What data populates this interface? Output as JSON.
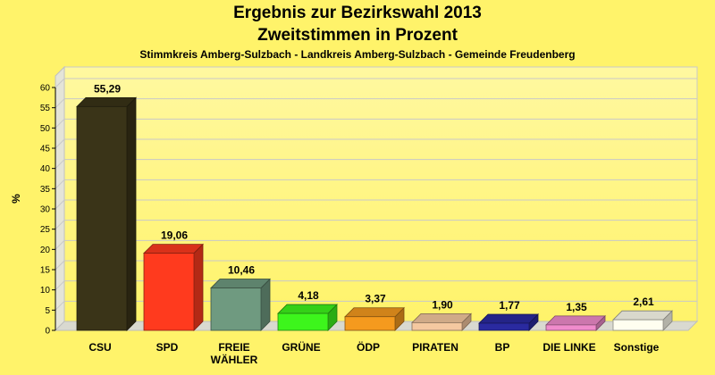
{
  "chart_data": {
    "type": "bar",
    "title": "Ergebnis zur Bezirkswahl 2013",
    "subtitle": "Zweitstimmen in Prozent",
    "caption": "Stimmkreis Amberg-Sulzbach - Landkreis Amberg-Sulzbach - Gemeinde Freudenberg",
    "ylabel": "%",
    "ylim": [
      0,
      60
    ],
    "yticks": [
      0,
      5,
      10,
      15,
      20,
      25,
      30,
      35,
      40,
      45,
      50,
      55,
      60
    ],
    "grid": true,
    "categories": [
      "CSU",
      "SPD",
      "FREIE WÄHLER",
      "GRÜNE",
      "ÖDP",
      "PIRATEN",
      "BP",
      "DIE LINKE",
      "Sonstige"
    ],
    "category_lines": [
      [
        "CSU"
      ],
      [
        "SPD"
      ],
      [
        "FREIE",
        "WÄHLER"
      ],
      [
        "GRÜNE"
      ],
      [
        "ÖDP"
      ],
      [
        "PIRATEN"
      ],
      [
        "BP"
      ],
      [
        "DIE LINKE"
      ],
      [
        "Sonstige"
      ]
    ],
    "values": [
      55.29,
      19.06,
      10.46,
      4.18,
      3.37,
      1.9,
      1.77,
      1.35,
      2.61
    ],
    "value_labels": [
      "55,29",
      "19,06",
      "10,46",
      "4,18",
      "3,37",
      "1,90",
      "1,77",
      "1,35",
      "2,61"
    ],
    "colors": [
      "#3a3418",
      "#ff3a1e",
      "#6f9a80",
      "#3df51c",
      "#f59a1e",
      "#f5c8a0",
      "#2a2aa0",
      "#f08ccc",
      "#fffef0"
    ]
  }
}
